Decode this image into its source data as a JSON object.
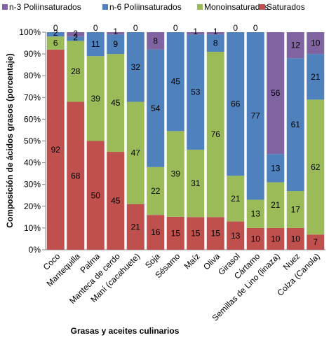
{
  "chart_data": {
    "type": "bar",
    "stacked": true,
    "normalized": true,
    "xlabel": "Grasas y aceites culinarios",
    "ylabel": "Composición de ácidos grasos (porcentaje)",
    "ylim": [
      0,
      100
    ],
    "yticks": [
      "0%",
      "10%",
      "20%",
      "30%",
      "40%",
      "50%",
      "60%",
      "70%",
      "80%",
      "90%",
      "100%"
    ],
    "legend_position": "top",
    "categories": [
      "Coco",
      "Mantequilla",
      "Palma",
      "Manteca de cerdo",
      "Maní (cacahuete)",
      "Soja",
      "Sésamo",
      "Maíz",
      "Oliva",
      "Girasol",
      "Cártamo",
      "Semillas de Lino (linaza)",
      "Nuez",
      "Colza (Canola)"
    ],
    "series": [
      {
        "name": "Saturados",
        "color": "#c0504d",
        "values": [
          92,
          68,
          50,
          45,
          21,
          16,
          15,
          15,
          15,
          13,
          10,
          10,
          10,
          7
        ]
      },
      {
        "name": "Monoinsaturados",
        "color": "#9bbb59",
        "values": [
          6,
          28,
          39,
          45,
          47,
          22,
          39,
          31,
          76,
          21,
          13,
          21,
          17,
          62
        ]
      },
      {
        "name": "n-6 Poliinsaturados",
        "color": "#4f81bd",
        "values": [
          2,
          2,
          11,
          9,
          32,
          54,
          45,
          53,
          8,
          66,
          77,
          13,
          61,
          21
        ]
      },
      {
        "name": "n-3 Poliinsaturados",
        "color": "#8064a2",
        "values": [
          0,
          2,
          0,
          1,
          0,
          8,
          0,
          1,
          1,
          0,
          0,
          56,
          12,
          10
        ]
      }
    ],
    "legend_order": [
      "n-3 Poliinsaturados",
      "n-6 Poliinsaturados",
      "Monoinsaturados",
      "Saturados"
    ]
  }
}
